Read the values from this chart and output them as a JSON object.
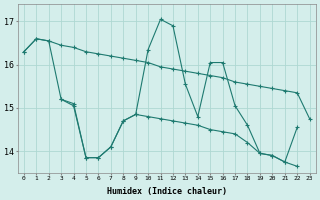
{
  "xlabel": "Humidex (Indice chaleur)",
  "bg_color": "#d4eeeb",
  "grid_color": "#aed8d2",
  "line_color": "#1e7a70",
  "xlim": [
    -0.5,
    23.5
  ],
  "ylim": [
    13.5,
    17.4
  ],
  "yticks": [
    14,
    15,
    16,
    17
  ],
  "xticks": [
    0,
    1,
    2,
    3,
    4,
    5,
    6,
    7,
    8,
    9,
    10,
    11,
    12,
    13,
    14,
    15,
    16,
    17,
    18,
    19,
    20,
    21,
    22,
    23
  ],
  "series_top": [
    16.3,
    16.6,
    16.55,
    16.45,
    16.4,
    16.3,
    16.25,
    16.2,
    16.15,
    16.1,
    16.05,
    15.95,
    15.9,
    15.85,
    15.8,
    15.75,
    15.7,
    15.6,
    15.55,
    15.5,
    15.45,
    15.4,
    15.35,
    14.75
  ],
  "series_main": [
    16.3,
    16.6,
    16.55,
    15.2,
    15.1,
    13.85,
    13.85,
    14.1,
    14.7,
    14.85,
    16.35,
    17.05,
    16.9,
    15.55,
    14.8,
    16.05,
    16.05,
    15.05,
    14.6,
    13.95,
    13.9,
    13.75,
    14.55,
    null
  ],
  "series_bot": [
    null,
    null,
    null,
    15.2,
    15.05,
    13.85,
    13.85,
    14.1,
    14.7,
    14.85,
    14.8,
    14.75,
    14.7,
    14.65,
    14.6,
    14.5,
    14.45,
    14.4,
    14.2,
    13.95,
    13.9,
    13.75,
    13.65,
    null
  ]
}
